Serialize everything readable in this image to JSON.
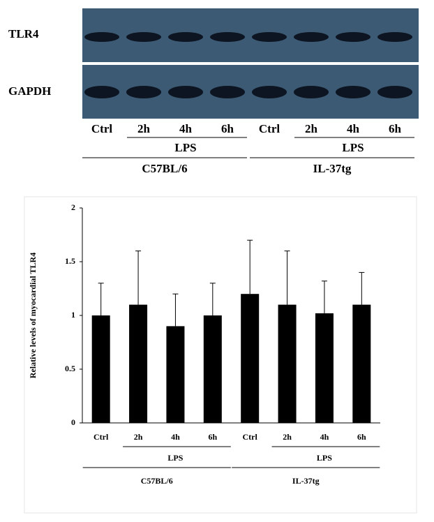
{
  "blot": {
    "rows": [
      "TLR4",
      "GAPDH"
    ],
    "lanes": [
      "Ctrl",
      "2h",
      "4h",
      "6h",
      "Ctrl",
      "2h",
      "4h",
      "6h"
    ],
    "treatment_labels": [
      "LPS",
      "LPS"
    ],
    "strain_labels": [
      "C57BL/6",
      "IL-37tg"
    ]
  },
  "chart_data": {
    "type": "bar",
    "ylabel": "Relative levels of myocardial TLR4",
    "categories": [
      "Ctrl",
      "2h",
      "4h",
      "6h",
      "Ctrl",
      "2h",
      "4h",
      "6h"
    ],
    "values": [
      1.0,
      1.1,
      0.9,
      1.0,
      1.2,
      1.1,
      1.02,
      1.1
    ],
    "errors": [
      0.3,
      0.5,
      0.3,
      0.3,
      0.5,
      0.5,
      0.3,
      0.3
    ],
    "color": "#000000",
    "ylim": [
      0,
      2
    ],
    "yticks": [
      0,
      0.5,
      1,
      1.5,
      2
    ],
    "treatment_labels": [
      "LPS",
      "LPS"
    ],
    "strain_labels": [
      "C57BL/6",
      "IL-37tg"
    ]
  }
}
